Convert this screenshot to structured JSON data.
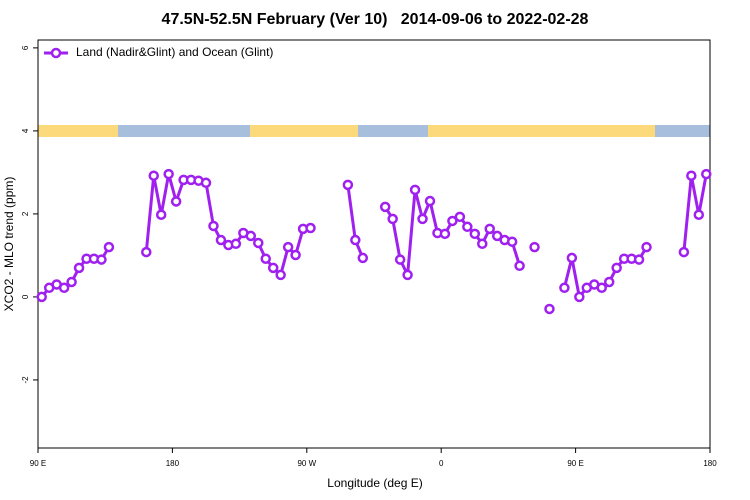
{
  "chart_data": {
    "type": "line",
    "title": "47.5N-52.5N February (Ver 10)   2014-09-06 to 2022-02-28",
    "x_label": "Longitude (deg E)",
    "y_label": "XCO2 - MLO trend (ppm)",
    "x": [
      92.5,
      97.5,
      102.5,
      107.5,
      112.5,
      117.5,
      122.5,
      127.5,
      132.5,
      137.5,
      142.5,
      147.5,
      152.5,
      157.5,
      162.5,
      167.5,
      172.5,
      177.5,
      182.5,
      187.5,
      192.5,
      197.5,
      202.5,
      207.5,
      212.5,
      217.5,
      222.5,
      227.5,
      232.5,
      237.5,
      242.5,
      247.5,
      252.5,
      257.5,
      262.5,
      267.5,
      272.5,
      277.5,
      282.5,
      287.5,
      292.5,
      297.5,
      302.5,
      307.5,
      312.5,
      317.5,
      322.5,
      327.5,
      332.5,
      337.5,
      342.5,
      347.5,
      352.5,
      357.5,
      362.5,
      367.5,
      372.5,
      377.5,
      382.5,
      387.5,
      392.5,
      397.5,
      402.5,
      407.5,
      412.5,
      417.5,
      422.5,
      427.5,
      432.5,
      437.5,
      442.5,
      447.5,
      452.5,
      457.5,
      462.5,
      467.5,
      472.5,
      477.5,
      482.5,
      487.5,
      492.5,
      497.5,
      502.5,
      507.5,
      512.5,
      517.5,
      522.5,
      527.5,
      532.5,
      537.5
    ],
    "series": [
      {
        "name": "Land (Nadir&Glint) and Ocean (Glint)",
        "color": "#a020f0",
        "values": [
          0,
          0.22,
          0.3,
          0.22,
          0.36,
          0.7,
          0.92,
          0.92,
          0.9,
          1.2,
          null,
          null,
          null,
          null,
          1.08,
          2.92,
          1.98,
          2.96,
          2.3,
          2.82,
          2.82,
          2.8,
          2.75,
          1.71,
          1.37,
          1.25,
          1.28,
          1.54,
          1.47,
          1.3,
          0.92,
          0.7,
          0.53,
          1.2,
          1.01,
          1.64,
          1.66,
          null,
          null,
          null,
          null,
          2.7,
          1.37,
          0.94,
          null,
          null,
          2.17,
          1.88,
          0.9,
          0.53,
          2.58,
          1.88,
          2.31,
          1.54,
          1.52,
          1.83,
          1.93,
          1.69,
          1.52,
          1.28,
          1.64,
          1.47,
          1.37,
          1.33,
          0.75,
          null,
          1.2,
          null,
          -0.29,
          null,
          0.22,
          0.94,
          0,
          0.22,
          0.3,
          0.22,
          0.36,
          0.7,
          0.92,
          0.92,
          0.9,
          1.2,
          null,
          null,
          null,
          null,
          1.08,
          2.92,
          1.98,
          2.96
        ]
      }
    ],
    "xlim": [
      90,
      540
    ],
    "xticks": [
      {
        "value": 90,
        "label": "90 E"
      },
      180,
      {
        "value": 270,
        "label": "90 W"
      },
      {
        "value": 360,
        "label": "0"
      },
      {
        "value": 450,
        "label": "90 E"
      },
      {
        "value": 540,
        "label": "180"
      }
    ],
    "ylim": [
      -3.64,
      6.19
    ],
    "yticks": [
      -2,
      0,
      2,
      4,
      6
    ],
    "legend": "top-left"
  }
}
